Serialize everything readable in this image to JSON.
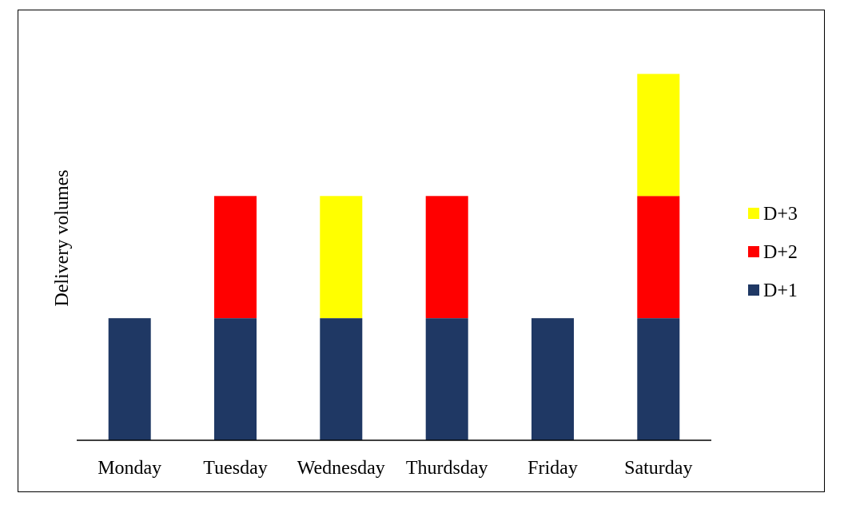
{
  "chart_data": {
    "type": "bar",
    "stacked": true,
    "title": "",
    "xlabel": "",
    "ylabel": "Delivery volumes",
    "categories": [
      "Monday",
      "Tuesday",
      "Wednesday",
      "Thurdsday",
      "Friday",
      "Saturday"
    ],
    "series": [
      {
        "name": "D+1",
        "color": "#1f3864",
        "values": [
          1,
          1,
          1,
          1,
          1,
          1
        ]
      },
      {
        "name": "D+2",
        "color": "#ff0000",
        "values": [
          0,
          1,
          0,
          1,
          0,
          1
        ]
      },
      {
        "name": "D+3",
        "color": "#ffff00",
        "values": [
          0,
          0,
          1,
          0,
          0,
          1
        ]
      }
    ],
    "ylim": [
      0,
      3
    ],
    "y_ticks_shown": false,
    "grid": false,
    "legend_position": "right",
    "legend_order": [
      "D+3",
      "D+2",
      "D+1"
    ]
  }
}
